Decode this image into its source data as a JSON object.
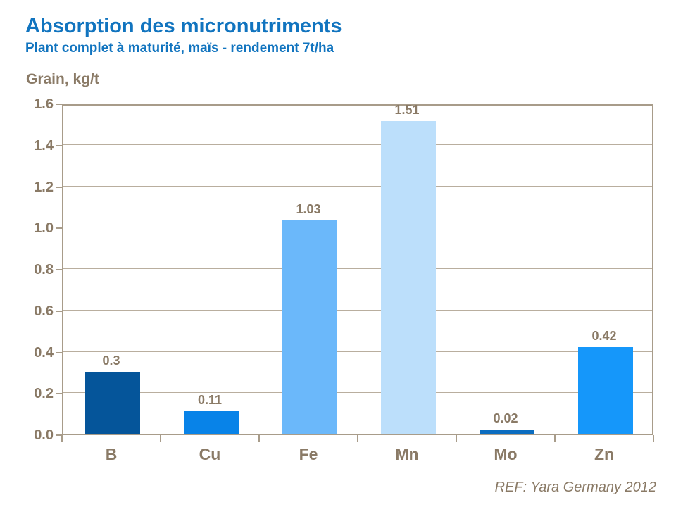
{
  "header": {
    "title": "Absorption des micronutriments",
    "subtitle": "Plant complet à maturité, maïs - rendement 7t/ha"
  },
  "chart_data": {
    "type": "bar",
    "title": "Absorption des micronutriments",
    "subtitle": "Plant complet à maturité, maïs - rendement 7t/ha",
    "ylabel": "Grain, kg/t",
    "xlabel": "",
    "categories": [
      "B",
      "Cu",
      "Fe",
      "Mn",
      "Mo",
      "Zn"
    ],
    "values": [
      0.3,
      0.11,
      1.03,
      1.51,
      0.02,
      0.42
    ],
    "value_labels": [
      "0.3",
      "0.11",
      "1.03",
      "1.51",
      "0.02",
      "0.42"
    ],
    "bar_colors": [
      "#05559a",
      "#0883e8",
      "#6bb8fa",
      "#bcdffb",
      "#0b6dc0",
      "#1597fa"
    ],
    "ylim": [
      0,
      1.6
    ],
    "yticks": [
      "0.0",
      "0.2",
      "0.4",
      "0.6",
      "0.8",
      "1.0",
      "1.2",
      "1.4",
      "1.6"
    ],
    "ytick_values": [
      0.0,
      0.2,
      0.4,
      0.6,
      0.8,
      1.0,
      1.2,
      1.4,
      1.6
    ],
    "grid": true,
    "legend": "none"
  },
  "footer": {
    "reference": "REF: Yara Germany 2012"
  },
  "colors": {
    "title_blue": "#1174bf",
    "axis_text_brown": "#8a7a66",
    "axis_line_tan": "#a89c8a",
    "gridline_tan": "#b9ae9e",
    "background": "#ffffff"
  }
}
